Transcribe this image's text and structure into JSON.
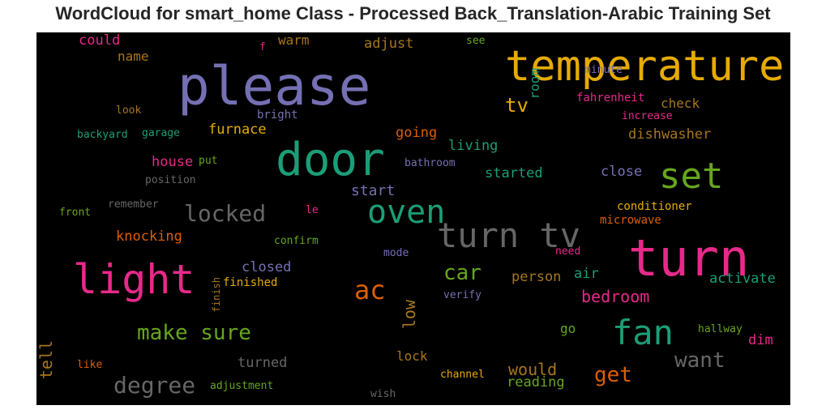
{
  "chart_data": {
    "type": "wordcloud",
    "title": "WordCloud for smart_home Class - Processed Back_Translation-Arabic Training Set",
    "background": "#000000",
    "palette": {
      "purple": "#7570b3",
      "orange": "#e6ab02",
      "green": "#1b9e77",
      "magenta": "#e7298a",
      "lime": "#66a61e",
      "gray": "#666666",
      "rust": "#d95f02",
      "brown": "#a6761d"
    },
    "words": [
      {
        "text": "please",
        "color": "purple"
      },
      {
        "text": "temperature",
        "color": "orange"
      },
      {
        "text": "door",
        "color": "green"
      },
      {
        "text": "set",
        "color": "lime"
      },
      {
        "text": "turn",
        "color": "magenta"
      },
      {
        "text": "light",
        "color": "magenta"
      },
      {
        "text": "oven",
        "color": "green"
      },
      {
        "text": "turn tv",
        "color": "gray"
      },
      {
        "text": "fan",
        "color": "green"
      },
      {
        "text": "ac",
        "color": "rust"
      },
      {
        "text": "locked",
        "color": "gray"
      },
      {
        "text": "make sure",
        "color": "lime"
      },
      {
        "text": "degree",
        "color": "gray"
      },
      {
        "text": "want",
        "color": "gray"
      },
      {
        "text": "get",
        "color": "rust"
      },
      {
        "text": "car",
        "color": "lime"
      },
      {
        "text": "tv",
        "color": "orange"
      },
      {
        "text": "start",
        "color": "purple"
      },
      {
        "text": "bedroom",
        "color": "magenta"
      },
      {
        "text": "would",
        "color": "brown"
      },
      {
        "text": "low",
        "color": "brown"
      },
      {
        "text": "tell",
        "color": "brown"
      },
      {
        "text": "room",
        "color": "green"
      },
      {
        "text": "furnace",
        "color": "orange"
      },
      {
        "text": "house",
        "color": "magenta"
      },
      {
        "text": "knocking",
        "color": "rust"
      },
      {
        "text": "closed",
        "color": "purple"
      },
      {
        "text": "turned",
        "color": "gray"
      },
      {
        "text": "could",
        "color": "magenta"
      },
      {
        "text": "name",
        "color": "brown"
      },
      {
        "text": "warm",
        "color": "brown"
      },
      {
        "text": "adjust",
        "color": "brown"
      },
      {
        "text": "check",
        "color": "brown"
      },
      {
        "text": "dishwasher",
        "color": "brown"
      },
      {
        "text": "going",
        "color": "rust"
      },
      {
        "text": "living",
        "color": "green"
      },
      {
        "text": "started",
        "color": "green"
      },
      {
        "text": "close",
        "color": "purple"
      },
      {
        "text": "activate",
        "color": "green"
      },
      {
        "text": "person",
        "color": "brown"
      },
      {
        "text": "air",
        "color": "green"
      },
      {
        "text": "reading",
        "color": "lime"
      },
      {
        "text": "dim",
        "color": "magenta"
      },
      {
        "text": "lock",
        "color": "brown"
      },
      {
        "text": "go",
        "color": "lime"
      },
      {
        "text": "conditioner",
        "color": "orange"
      },
      {
        "text": "microwave",
        "color": "rust"
      },
      {
        "text": "fahrenheit",
        "color": "magenta"
      },
      {
        "text": "increase",
        "color": "magenta"
      },
      {
        "text": "minute",
        "color": "purple"
      },
      {
        "text": "bright",
        "color": "purple"
      },
      {
        "text": "bathroom",
        "color": "purple"
      },
      {
        "text": "hallway",
        "color": "lime"
      },
      {
        "text": "finished",
        "color": "orange"
      },
      {
        "text": "confirm",
        "color": "lime"
      },
      {
        "text": "mode",
        "color": "purple"
      },
      {
        "text": "need",
        "color": "magenta"
      },
      {
        "text": "verify",
        "color": "purple"
      },
      {
        "text": "channel",
        "color": "orange"
      },
      {
        "text": "adjustment",
        "color": "lime"
      },
      {
        "text": "wish",
        "color": "gray"
      },
      {
        "text": "like",
        "color": "rust"
      },
      {
        "text": "finish",
        "color": "brown"
      },
      {
        "text": "backyard",
        "color": "green"
      },
      {
        "text": "garage",
        "color": "green"
      },
      {
        "text": "look",
        "color": "brown"
      },
      {
        "text": "position",
        "color": "gray"
      },
      {
        "text": "put",
        "color": "lime"
      },
      {
        "text": "remember",
        "color": "gray"
      },
      {
        "text": "front",
        "color": "lime"
      },
      {
        "text": "le",
        "color": "magenta"
      },
      {
        "text": "see",
        "color": "lime"
      },
      {
        "text": "f",
        "color": "magenta"
      }
    ]
  }
}
